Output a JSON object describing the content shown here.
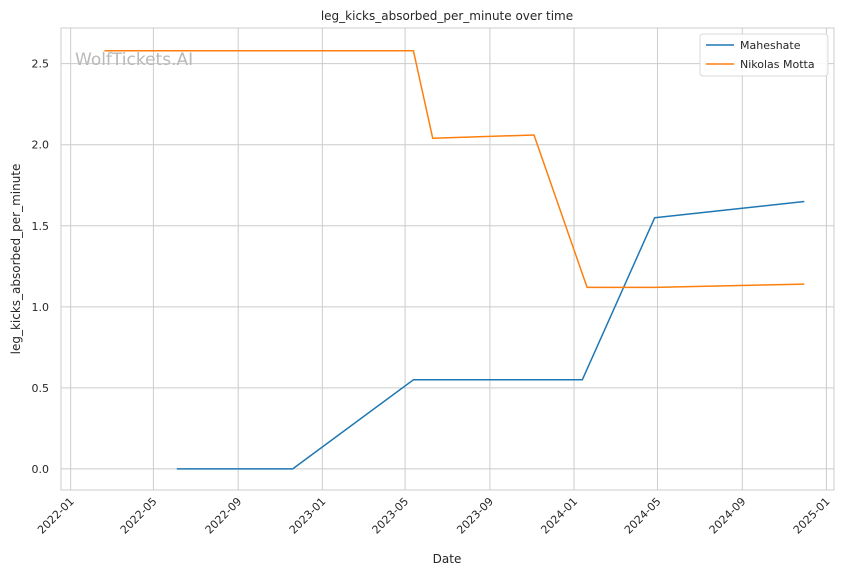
{
  "watermark": "WolfTickets.AI",
  "chart_data": {
    "type": "line",
    "title": "leg_kicks_absorbed_per_minute over time",
    "xlabel": "Date",
    "ylabel": "leg_kicks_absorbed_per_minute",
    "x_ticks": [
      "2022-01",
      "2022-05",
      "2022-09",
      "2023-01",
      "2023-05",
      "2023-09",
      "2024-01",
      "2024-05",
      "2024-09",
      "2025-01"
    ],
    "y_ticks": [
      "0.0",
      "0.5",
      "1.0",
      "1.5",
      "2.0",
      "2.5"
    ],
    "ylim": [
      -0.13,
      2.72
    ],
    "xlim": [
      "2021-12-18",
      "2025-01-12"
    ],
    "grid": true,
    "legend_position": "top-right",
    "series": [
      {
        "name": "Maheshate",
        "color": "#1f77b4",
        "points": [
          {
            "x": "2022-06-04",
            "y": 0.0
          },
          {
            "x": "2022-11-19",
            "y": 0.0
          },
          {
            "x": "2023-05-13",
            "y": 0.55
          },
          {
            "x": "2024-01-13",
            "y": 0.55
          },
          {
            "x": "2024-04-27",
            "y": 1.55
          },
          {
            "x": "2024-11-30",
            "y": 1.65
          }
        ]
      },
      {
        "name": "Nikolas Motta",
        "color": "#ff7f0e",
        "points": [
          {
            "x": "2022-02-19",
            "y": 2.58
          },
          {
            "x": "2023-05-13",
            "y": 2.58
          },
          {
            "x": "2023-06-10",
            "y": 2.04
          },
          {
            "x": "2023-11-04",
            "y": 2.06
          },
          {
            "x": "2024-01-20",
            "y": 1.12
          },
          {
            "x": "2024-04-27",
            "y": 1.12
          },
          {
            "x": "2024-11-30",
            "y": 1.14
          }
        ]
      }
    ]
  }
}
